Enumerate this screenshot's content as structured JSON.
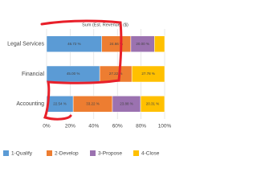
{
  "chart_data": {
    "type": "stacked-barh",
    "x_label": "Sum (Est. Revenue) ($)",
    "categories": [
      "Legal Services",
      "Financial",
      "Accounting"
    ],
    "series": [
      {
        "name": "1-Qualify",
        "color": "#5b9bd5",
        "values": [
          46.72,
          45.0,
          22.54
        ],
        "value_labels": [
          "46.72 %",
          "45.00 %",
          "22.54 %"
        ]
      },
      {
        "name": "2-Develop",
        "color": "#ed7d31",
        "values": [
          24.66,
          27.22,
          33.22
        ],
        "value_labels": [
          "24.66 %",
          "27.22 %",
          "33.22 %"
        ]
      },
      {
        "name": "3-Propose",
        "color": "#9b72b0",
        "values": [
          20.0,
          null,
          23.88
        ],
        "value_labels": [
          "20.00 %",
          null,
          "23.88 %"
        ]
      },
      {
        "name": "4-Close",
        "color": "#ffc000",
        "values": [
          8.62,
          27.78,
          20.31
        ],
        "value_labels": [
          null,
          "27.78 %",
          "20.31 %"
        ]
      }
    ],
    "xlim": [
      0,
      100
    ],
    "xticks": [
      {
        "value": 0,
        "label": "0%"
      },
      {
        "value": 20,
        "label": "20%"
      },
      {
        "value": 40,
        "label": "40%"
      },
      {
        "value": 60,
        "label": "60%"
      },
      {
        "value": 80,
        "label": "80%"
      },
      {
        "value": 100,
        "label": "100%"
      }
    ],
    "grid": true
  }
}
